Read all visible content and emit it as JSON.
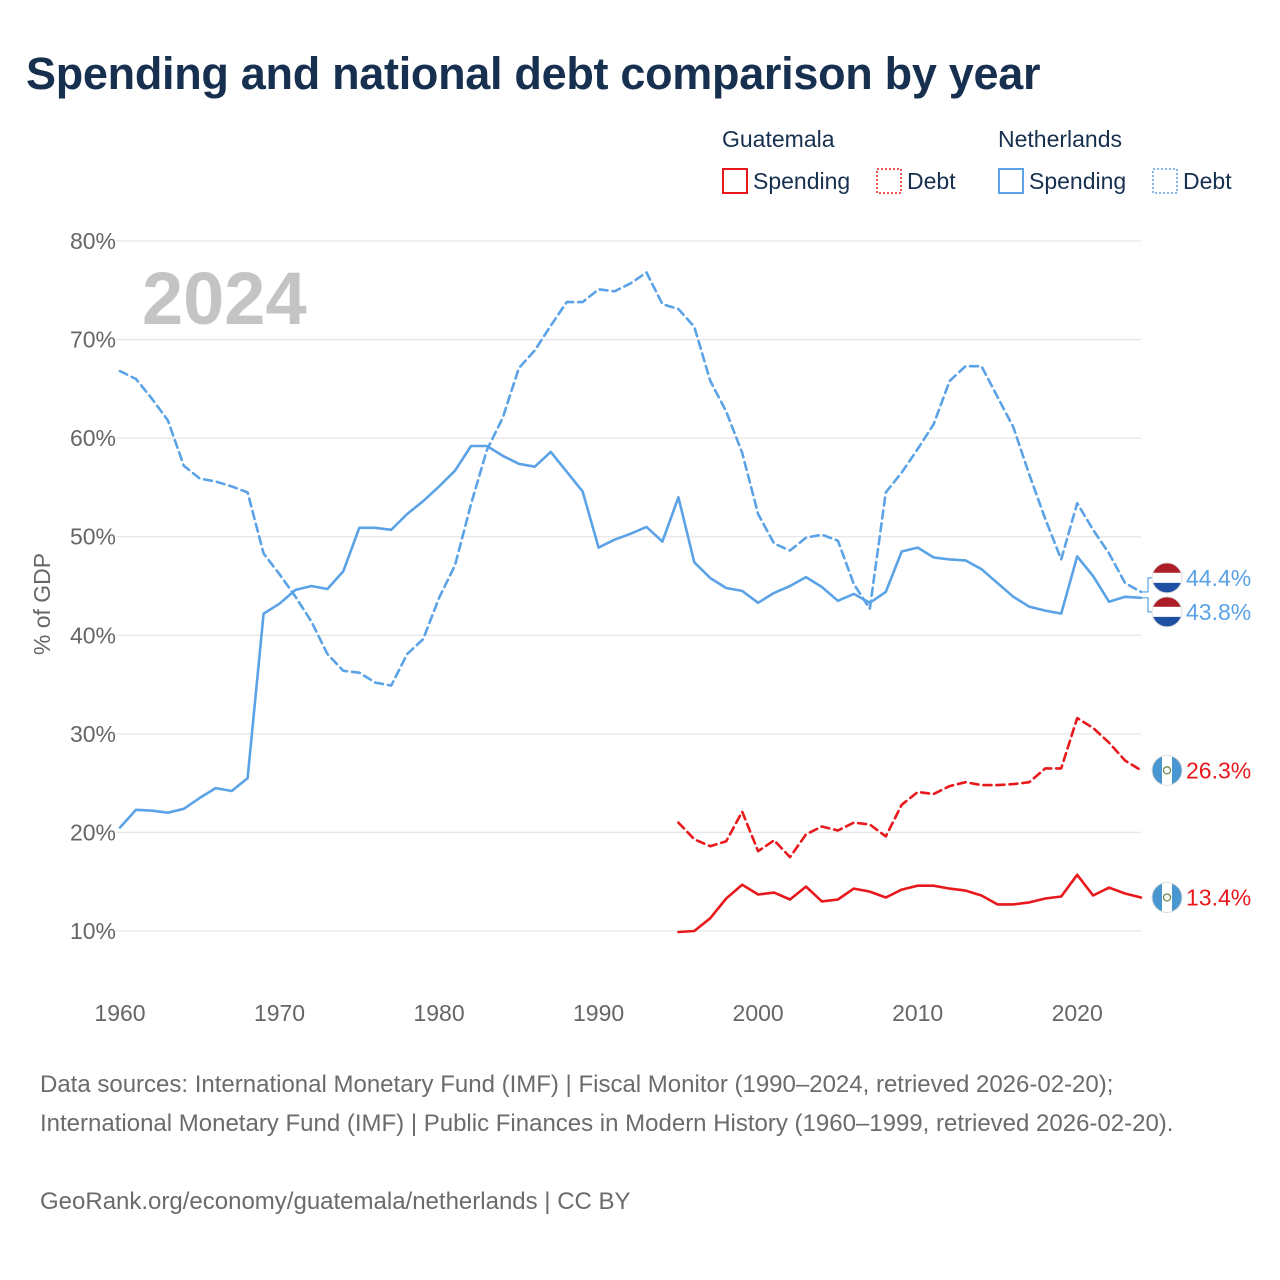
{
  "title": "Spending and national debt comparison by year",
  "year_overlay": "2024",
  "sources": "Data sources: International Monetary Fund (IMF) | Fiscal Monitor (1990–2024, retrieved 2026-02-20); International Monetary Fund (IMF) | Public Finances in Modern History (1960–1999, retrieved 2026-02-20).",
  "credit": "GeoRank.org/economy/guatemala/netherlands | CC BY",
  "colors": {
    "guatemala": "#e8191d",
    "netherlands": "#5ba3e6",
    "grid": "#e6e6e6",
    "axis_text": "#666666",
    "title": "#17304f"
  },
  "chart_data": {
    "type": "line",
    "ylabel": "% of GDP",
    "xlim": [
      1960,
      2024
    ],
    "ylim": [
      10,
      80
    ],
    "x_ticks": [
      1960,
      1970,
      1980,
      1990,
      2000,
      2010,
      2020
    ],
    "x_tick_labels": [
      "1960",
      "1970",
      "1980",
      "1990",
      "2000",
      "2010",
      "2020"
    ],
    "y_ticks": [
      10,
      20,
      30,
      40,
      50,
      60,
      70,
      80
    ],
    "y_tick_labels": [
      "10%",
      "20%",
      "30%",
      "40%",
      "50%",
      "60%",
      "70%",
      "80%"
    ],
    "grid": true,
    "legend": {
      "placement": "top-right",
      "groups": [
        {
          "country": "Guatemala",
          "items": [
            {
              "label": "Spending",
              "style": "solid"
            },
            {
              "label": "Debt",
              "style": "dotted"
            }
          ]
        },
        {
          "country": "Netherlands",
          "items": [
            {
              "label": "Spending",
              "style": "solid"
            },
            {
              "label": "Debt",
              "style": "dotted"
            }
          ]
        }
      ]
    },
    "series": [
      {
        "name": "Netherlands Spending",
        "country": "Netherlands",
        "measure": "Spending",
        "color": "#5ba3e6",
        "dash": "solid",
        "end_label": "43.8%",
        "x": [
          1960,
          1961,
          1962,
          1963,
          1964,
          1965,
          1966,
          1967,
          1968,
          1969,
          1970,
          1971,
          1972,
          1973,
          1974,
          1975,
          1976,
          1977,
          1978,
          1979,
          1980,
          1981,
          1982,
          1983,
          1984,
          1985,
          1986,
          1987,
          1988,
          1989,
          1990,
          1991,
          1992,
          1993,
          1994,
          1995,
          1996,
          1997,
          1998,
          1999,
          2000,
          2001,
          2002,
          2003,
          2004,
          2005,
          2006,
          2007,
          2008,
          2009,
          2010,
          2011,
          2012,
          2013,
          2014,
          2015,
          2016,
          2017,
          2018,
          2019,
          2020,
          2021,
          2022,
          2023,
          2024
        ],
        "values": [
          20.5,
          22.3,
          22.2,
          22.0,
          22.4,
          23.5,
          24.5,
          24.2,
          25.5,
          42.2,
          43.2,
          44.6,
          45.0,
          44.7,
          46.5,
          50.9,
          50.9,
          50.7,
          52.3,
          53.6,
          55.1,
          56.7,
          59.2,
          59.2,
          58.2,
          57.4,
          57.1,
          58.6,
          56.6,
          54.6,
          48.9,
          49.7,
          50.3,
          51.0,
          49.5,
          54.0,
          47.4,
          45.8,
          44.8,
          44.5,
          43.3,
          44.3,
          45.0,
          45.9,
          44.9,
          43.5,
          44.2,
          43.3,
          44.4,
          48.5,
          48.9,
          47.9,
          47.7,
          47.6,
          46.7,
          45.3,
          43.9,
          42.9,
          42.5,
          42.2,
          48.0,
          46.0,
          43.4,
          43.9,
          43.8
        ]
      },
      {
        "name": "Netherlands Debt",
        "country": "Netherlands",
        "measure": "Debt",
        "color": "#5ba3e6",
        "dash": "dashed",
        "end_label": "44.4%",
        "x": [
          1960,
          1961,
          1962,
          1963,
          1964,
          1965,
          1966,
          1967,
          1968,
          1969,
          1970,
          1971,
          1972,
          1973,
          1974,
          1975,
          1976,
          1977,
          1978,
          1979,
          1980,
          1981,
          1982,
          1983,
          1984,
          1985,
          1986,
          1987,
          1988,
          1989,
          1990,
          1991,
          1992,
          1993,
          1994,
          1995,
          1996,
          1997,
          1998,
          1999,
          2000,
          2001,
          2002,
          2003,
          2004,
          2005,
          2006,
          2007,
          2008,
          2009,
          2010,
          2011,
          2012,
          2013,
          2014,
          2015,
          2016,
          2017,
          2018,
          2019,
          2020,
          2021,
          2022,
          2023,
          2024
        ],
        "values": [
          66.8,
          66.0,
          64.0,
          61.8,
          57.2,
          55.9,
          55.6,
          55.1,
          54.5,
          48.3,
          46.2,
          43.9,
          41.4,
          38.1,
          36.4,
          36.2,
          35.2,
          34.9,
          38.1,
          39.6,
          43.8,
          47.1,
          53.3,
          58.8,
          62.1,
          67.1,
          68.9,
          71.4,
          73.8,
          73.8,
          75.1,
          74.9,
          75.7,
          76.8,
          73.6,
          73.1,
          71.3,
          65.8,
          62.7,
          58.5,
          52.3,
          49.3,
          48.6,
          49.9,
          50.2,
          49.6,
          45.2,
          42.7,
          54.5,
          56.5,
          58.9,
          61.4,
          65.8,
          67.3,
          67.3,
          64.2,
          61.1,
          56.3,
          51.8,
          47.7,
          53.4,
          50.7,
          48.3,
          45.3,
          44.4
        ]
      },
      {
        "name": "Guatemala Debt",
        "country": "Guatemala",
        "measure": "Debt",
        "color": "#e8191d",
        "dash": "dashed",
        "end_label": "26.3%",
        "x": [
          1995,
          1996,
          1997,
          1998,
          1999,
          2000,
          2001,
          2002,
          2003,
          2004,
          2005,
          2006,
          2007,
          2008,
          2009,
          2010,
          2011,
          2012,
          2013,
          2014,
          2015,
          2016,
          2017,
          2018,
          2019,
          2020,
          2021,
          2022,
          2023,
          2024
        ],
        "values": [
          21.0,
          19.3,
          18.6,
          19.1,
          22.1,
          18.1,
          19.2,
          17.5,
          19.8,
          20.6,
          20.2,
          21.0,
          20.8,
          19.6,
          22.8,
          24.1,
          23.9,
          24.7,
          25.1,
          24.8,
          24.8,
          24.9,
          25.1,
          26.5,
          26.5,
          31.6,
          30.6,
          29.1,
          27.3,
          26.3
        ]
      },
      {
        "name": "Guatemala Spending",
        "country": "Guatemala",
        "measure": "Spending",
        "color": "#e8191d",
        "dash": "solid",
        "end_label": "13.4%",
        "x": [
          1995,
          1996,
          1997,
          1998,
          1999,
          2000,
          2001,
          2002,
          2003,
          2004,
          2005,
          2006,
          2007,
          2008,
          2009,
          2010,
          2011,
          2012,
          2013,
          2014,
          2015,
          2016,
          2017,
          2018,
          2019,
          2020,
          2021,
          2022,
          2023,
          2024
        ],
        "values": [
          9.9,
          10.0,
          11.3,
          13.3,
          14.7,
          13.7,
          13.9,
          13.2,
          14.5,
          13.0,
          13.2,
          14.3,
          14.0,
          13.4,
          14.2,
          14.6,
          14.6,
          14.3,
          14.1,
          13.6,
          12.7,
          12.7,
          12.9,
          13.3,
          13.5,
          15.7,
          13.6,
          14.4,
          13.8,
          13.4
        ]
      }
    ]
  }
}
